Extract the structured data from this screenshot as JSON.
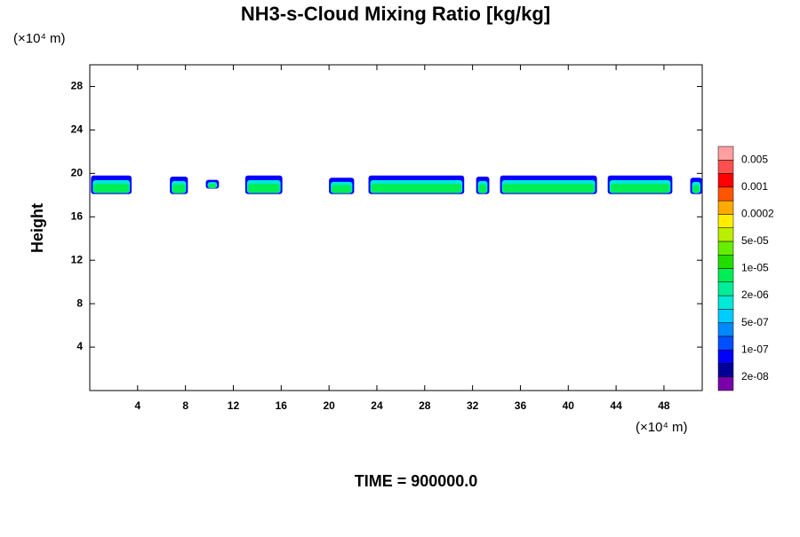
{
  "chart_data": {
    "type": "contour",
    "title": "NH3-s-Cloud Mixing Ratio [kg/kg]",
    "y_label": "Height",
    "y_unit": "(×10⁴ m)",
    "x_unit": "(×10⁴ m)",
    "footer": "TIME = 900000.0",
    "xlim": [
      0,
      51.2
    ],
    "xticks": [
      4,
      8,
      12,
      16,
      20,
      24,
      28,
      32,
      36,
      40,
      44,
      48
    ],
    "ylim": [
      0,
      30
    ],
    "yticks": [
      4,
      8,
      12,
      16,
      20,
      24,
      28
    ],
    "clouds": [
      {
        "x": [
          0.1,
          3.5
        ],
        "top": 19.8,
        "bottom": 18.1
      },
      {
        "x": [
          6.7,
          8.2
        ],
        "top": 19.7,
        "bottom": 18.1
      },
      {
        "x": [
          9.7,
          10.8
        ],
        "top": 19.4,
        "bottom": 18.6
      },
      {
        "x": [
          13,
          16.1
        ],
        "top": 19.8,
        "bottom": 18.1
      },
      {
        "x": [
          20,
          22.1
        ],
        "top": 19.6,
        "bottom": 18.1
      },
      {
        "x": [
          23.3,
          31.3
        ],
        "top": 19.8,
        "bottom": 18.1
      },
      {
        "x": [
          32.3,
          33.4
        ],
        "top": 19.7,
        "bottom": 18.1
      },
      {
        "x": [
          34.3,
          42.4
        ],
        "top": 19.8,
        "bottom": 18.1
      },
      {
        "x": [
          43.3,
          48.7
        ],
        "top": 19.8,
        "bottom": 18.1
      },
      {
        "x": [
          50.2,
          51.2
        ],
        "top": 19.6,
        "bottom": 18.1
      }
    ],
    "colorbar": {
      "colors": [
        "#7a00aa",
        "#000099",
        "#0000ff",
        "#0050ff",
        "#0088ff",
        "#00ccff",
        "#00e8d8",
        "#00ee99",
        "#00ee55",
        "#22dd00",
        "#66ee00",
        "#bbee00",
        "#ffee00",
        "#ffaa00",
        "#ff5500",
        "#ff0000",
        "#ff5050",
        "#ff9f9f"
      ],
      "levels": [
        "2e-08",
        "1e-07",
        "5e-07",
        "2e-06",
        "1e-05",
        "5e-05",
        "0.0002",
        "0.001",
        "0.005"
      ]
    }
  }
}
